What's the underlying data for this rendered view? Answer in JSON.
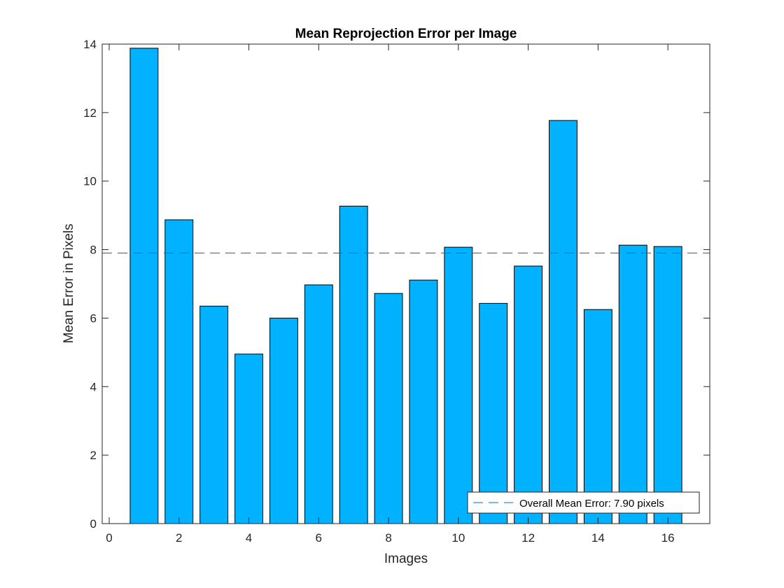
{
  "chart_data": {
    "type": "bar",
    "title": "Mean Reprojection Error per Image",
    "xlabel": "Images",
    "ylabel": "Mean Error in Pixels",
    "x": [
      1,
      2,
      3,
      4,
      5,
      6,
      7,
      8,
      9,
      10,
      11,
      12,
      13,
      14,
      15,
      16
    ],
    "values": [
      13.88,
      8.87,
      6.35,
      4.95,
      6.0,
      6.97,
      9.27,
      6.72,
      7.11,
      8.07,
      6.43,
      7.52,
      11.77,
      6.25,
      8.13,
      8.09
    ],
    "xlim": [
      -0.2,
      17.2
    ],
    "ylim": [
      0,
      14
    ],
    "xticks": [
      0,
      2,
      4,
      6,
      8,
      10,
      12,
      14,
      16
    ],
    "yticks": [
      0,
      2,
      4,
      6,
      8,
      10,
      12,
      14
    ],
    "bar_color": "#00b2ff",
    "overall_mean": {
      "value": 7.9,
      "label": "Overall Mean Error: 7.90 pixels",
      "color": "#0072bd"
    },
    "legend_location": "bottom-right",
    "grid": false
  }
}
